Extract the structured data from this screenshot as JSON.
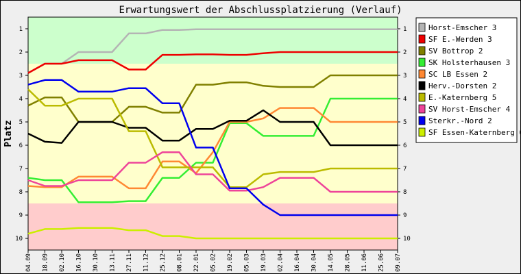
{
  "chart_data": {
    "type": "line",
    "title": "Erwartungswert der Abschlussplatzierung (Verlauf)",
    "xlabel": "",
    "ylabel": "Platz",
    "y_inverted": true,
    "ylim": [
      1,
      10
    ],
    "y_ticks": [
      "1",
      "2",
      "3",
      "4",
      "5",
      "6",
      "7",
      "8",
      "9",
      "10"
    ],
    "zones": [
      {
        "from": 0.5,
        "to": 2.5,
        "color": "#ccffcc"
      },
      {
        "from": 2.5,
        "to": 8.5,
        "color": "#ffffcc"
      },
      {
        "from": 8.5,
        "to": 10.5,
        "color": "#ffcccc"
      }
    ],
    "grid": false,
    "legend_position": "right",
    "x": [
      "04.09",
      "18.09",
      "02.10",
      "16.10",
      "30.10",
      "13.11",
      "27.11",
      "11.12",
      "25.12",
      "08.01",
      "22.01",
      "05.02",
      "19.02",
      "05.03",
      "19.03",
      "02.04",
      "16.04",
      "30.04",
      "14.05",
      "28.05",
      "11.06",
      "25.06",
      "09.07"
    ],
    "series": [
      {
        "name": "Horst-Emscher 3",
        "color": "#b4b4b4",
        "values": [
          2.9,
          2.5,
          2.5,
          2.0,
          2.0,
          2.0,
          1.2,
          1.2,
          1.05,
          1.05,
          1.02,
          1.02,
          1.02,
          1.02,
          1.02,
          1.02,
          1.02,
          1.02,
          1.02,
          1.02,
          1.02,
          1.02,
          1.02
        ]
      },
      {
        "name": "SF E.-Werden 3",
        "color": "#ee0000",
        "values": [
          2.9,
          2.5,
          2.5,
          2.35,
          2.35,
          2.35,
          2.75,
          2.75,
          2.12,
          2.12,
          2.1,
          2.1,
          2.12,
          2.12,
          2.05,
          2.0,
          2.0,
          2.0,
          2.0,
          2.0,
          2.0,
          2.0,
          2.0
        ]
      },
      {
        "name": "SV Bottrop 2",
        "color": "#808000",
        "values": [
          4.3,
          3.95,
          3.95,
          5.0,
          5.0,
          5.0,
          4.35,
          4.35,
          4.6,
          4.6,
          3.4,
          3.4,
          3.3,
          3.3,
          3.45,
          3.5,
          3.5,
          3.5,
          3.0,
          3.0,
          3.0,
          3.0,
          3.0
        ]
      },
      {
        "name": "SK Holsterhausen 3",
        "color": "#33ee33",
        "values": [
          7.4,
          7.5,
          7.5,
          8.45,
          8.45,
          8.45,
          8.4,
          8.4,
          7.4,
          7.4,
          6.75,
          6.75,
          5.05,
          5.05,
          5.6,
          5.6,
          5.6,
          5.6,
          4.0,
          4.0,
          4.0,
          4.0,
          4.0
        ]
      },
      {
        "name": "SC LB Essen 2",
        "color": "#ff8833",
        "values": [
          7.75,
          7.8,
          7.8,
          7.35,
          7.35,
          7.35,
          7.85,
          7.85,
          6.7,
          6.7,
          7.2,
          6.3,
          5.0,
          5.0,
          4.85,
          4.4,
          4.4,
          4.4,
          5.0,
          5.0,
          5.0,
          5.0,
          5.0
        ]
      },
      {
        "name": "Herv.-Dorsten 2",
        "color": "#000000",
        "values": [
          5.5,
          5.85,
          5.9,
          5.0,
          5.0,
          5.0,
          5.25,
          5.25,
          5.8,
          5.8,
          5.3,
          5.3,
          4.95,
          4.95,
          4.5,
          5.0,
          5.0,
          5.0,
          6.0,
          6.0,
          6.0,
          6.0,
          6.0
        ]
      },
      {
        "name": "E.-Katernberg 5",
        "color": "#bbbb00",
        "values": [
          3.6,
          4.3,
          4.3,
          4.0,
          4.0,
          4.0,
          5.4,
          5.4,
          6.95,
          6.95,
          6.95,
          6.95,
          7.8,
          7.8,
          7.25,
          7.15,
          7.15,
          7.15,
          7.0,
          7.0,
          7.0,
          7.0,
          7.0
        ]
      },
      {
        "name": "SV Horst-Emscher 4",
        "color": "#ee4499",
        "values": [
          7.5,
          7.75,
          7.75,
          7.5,
          7.5,
          7.5,
          6.75,
          6.75,
          6.3,
          6.3,
          7.25,
          7.25,
          7.95,
          7.95,
          7.8,
          7.4,
          7.4,
          7.4,
          8.0,
          8.0,
          8.0,
          8.0,
          8.0
        ]
      },
      {
        "name": "Sterkr.-Nord 2",
        "color": "#0000ee",
        "values": [
          3.4,
          3.2,
          3.2,
          3.7,
          3.7,
          3.7,
          3.55,
          3.55,
          4.2,
          4.2,
          6.1,
          6.1,
          7.85,
          7.85,
          8.55,
          9.0,
          9.0,
          9.0,
          9.0,
          9.0,
          9.0,
          9.0,
          9.0
        ]
      },
      {
        "name": "SF Essen-Katernberg 6",
        "color": "#ccee00",
        "values": [
          9.8,
          9.6,
          9.6,
          9.55,
          9.55,
          9.55,
          9.65,
          9.65,
          9.9,
          9.9,
          10.0,
          10.0,
          10.0,
          10.0,
          10.0,
          10.0,
          10.0,
          10.0,
          10.0,
          10.0,
          10.0,
          10.0,
          10.0
        ]
      }
    ]
  }
}
